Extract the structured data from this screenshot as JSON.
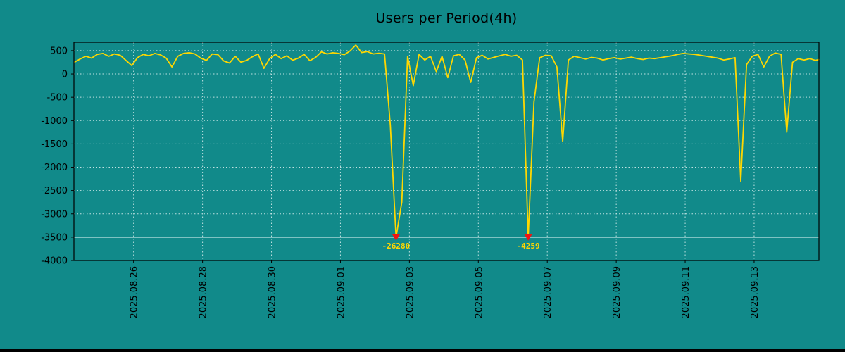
{
  "page": {
    "background": "#118a8a"
  },
  "chart_data": {
    "type": "line",
    "title": "Users per Period(4h)",
    "x_axis": {
      "unit": "days since 2025.08.24 00:00, 4h sampling",
      "xlim": [
        0.27,
        21.88
      ],
      "tick_labels_rotated": true,
      "ticks": [
        {
          "t": 2,
          "label": "2025.08.26"
        },
        {
          "t": 4,
          "label": "2025.08.28"
        },
        {
          "t": 6,
          "label": "2025.08.30"
        },
        {
          "t": 8,
          "label": "2025.09.01"
        },
        {
          "t": 10,
          "label": "2025.09.03"
        },
        {
          "t": 12,
          "label": "2025.09.05"
        },
        {
          "t": 14,
          "label": "2025.09.07"
        },
        {
          "t": 16,
          "label": "2025.09.09"
        },
        {
          "t": 18,
          "label": "2025.09.11"
        },
        {
          "t": 20,
          "label": "2025.09.13"
        }
      ]
    },
    "y_axis": {
      "ylim": [
        -4000,
        680
      ],
      "ticks": [
        {
          "v": 500,
          "label": "500"
        },
        {
          "v": 0,
          "label": "0"
        },
        {
          "v": -500,
          "label": "-500"
        },
        {
          "v": -1000,
          "label": "-1000"
        },
        {
          "v": -1500,
          "label": "-1500"
        },
        {
          "v": -2000,
          "label": "-2000"
        },
        {
          "v": -2500,
          "label": "-2500"
        },
        {
          "v": -3000,
          "label": "-3000"
        },
        {
          "v": -3500,
          "label": "-3500"
        },
        {
          "v": -4000,
          "label": "-4000"
        }
      ]
    },
    "grid": {
      "style": "dotted",
      "color": "#dff1f1"
    },
    "threshold_line": {
      "y": -3500,
      "color": "#eafafa"
    },
    "series": [
      {
        "name": "users",
        "color": "#ffd700",
        "x_start": 0.28,
        "x_step": 0.16667,
        "display_clip_min": -3500,
        "values": [
          250,
          320,
          380,
          340,
          420,
          440,
          380,
          430,
          400,
          290,
          180,
          350,
          420,
          390,
          440,
          410,
          340,
          150,
          380,
          440,
          455,
          430,
          340,
          290,
          430,
          415,
          280,
          235,
          380,
          255,
          290,
          370,
          430,
          120,
          330,
          420,
          330,
          390,
          295,
          340,
          420,
          285,
          355,
          475,
          430,
          455,
          440,
          415,
          495,
          620,
          460,
          480,
          430,
          445,
          430,
          -1100,
          -3500,
          -2750,
          380,
          -250,
          420,
          300,
          380,
          50,
          380,
          -80,
          390,
          420,
          300,
          -180,
          350,
          400,
          320,
          355,
          390,
          420,
          380,
          400,
          300,
          -3500,
          -600,
          350,
          400,
          390,
          150,
          -1450,
          300,
          380,
          350,
          320,
          355,
          340,
          300,
          330,
          350,
          320,
          340,
          360,
          330,
          310,
          340,
          330,
          350,
          370,
          390,
          420,
          440,
          430,
          420,
          400,
          380,
          360,
          340,
          300,
          320,
          350,
          -2300,
          200,
          380,
          420,
          150,
          380,
          450,
          420,
          -1250,
          250,
          330,
          300,
          330,
          290,
          310
        ]
      }
    ],
    "annotations": [
      {
        "x": 9.613,
        "y": -3500,
        "label": "-26280",
        "value": -26280,
        "marker": "down-triangle",
        "marker_color": "#f01414",
        "label_color": "#ffd700"
      },
      {
        "x": 13.447,
        "y": -3500,
        "label": "-4259",
        "value": -4259,
        "marker": "down-triangle",
        "marker_color": "#f01414",
        "label_color": "#ffd700"
      }
    ]
  }
}
